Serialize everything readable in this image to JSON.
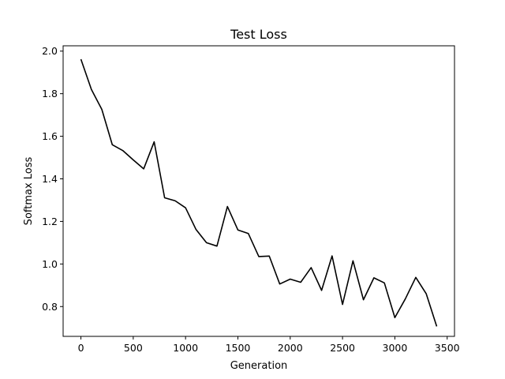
{
  "chart_data": {
    "type": "line",
    "title": "Test Loss",
    "xlabel": "Generation",
    "ylabel": "Softmax Loss",
    "xlim": [
      -170,
      3570
    ],
    "ylim": [
      0.66,
      2.025
    ],
    "xticks": [
      0,
      500,
      1000,
      1500,
      2000,
      2500,
      3000,
      3500
    ],
    "yticks": [
      0.8,
      1.0,
      1.2,
      1.4,
      1.6,
      1.8,
      2.0
    ],
    "grid": false,
    "legend": "none",
    "line_color": "#000000",
    "series": [
      {
        "x": [
          0,
          100,
          200,
          300,
          400,
          500,
          600,
          700,
          800,
          900,
          1000,
          1100,
          1200,
          1300,
          1400,
          1500,
          1600,
          1700,
          1800,
          1900,
          2000,
          2100,
          2200,
          2300,
          2400,
          2500,
          2600,
          2700,
          2800,
          2900,
          3000,
          3100,
          3200,
          3300,
          3400
        ],
        "values": [
          1.962,
          1.82,
          1.726,
          1.56,
          1.533,
          1.489,
          1.447,
          1.574,
          1.311,
          1.297,
          1.264,
          1.162,
          1.1,
          1.084,
          1.27,
          1.16,
          1.143,
          1.035,
          1.037,
          0.906,
          0.929,
          0.914,
          0.983,
          0.876,
          1.038,
          0.81,
          1.015,
          0.832,
          0.935,
          0.911,
          0.748,
          0.836,
          0.937,
          0.86,
          0.707
        ]
      }
    ]
  }
}
